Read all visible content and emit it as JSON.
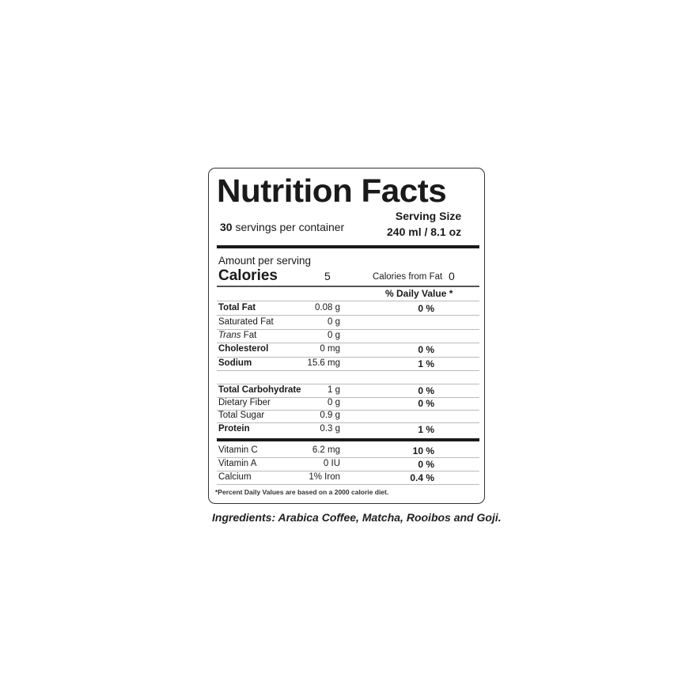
{
  "label": {
    "title": "Nutrition Facts",
    "servings_count": "30",
    "servings_text": "servings per container",
    "serving_size_label": "Serving Size",
    "serving_size_value": "240 ml / 8.1 oz",
    "amount_per_serving": "Amount per serving",
    "calories_label": "Calories",
    "calories_value": "5",
    "calories_from_fat_label": "Calories from Fat",
    "calories_from_fat_value": "0",
    "daily_value_header": "% Daily Value *",
    "nutrients": [
      {
        "name": "Total Fat",
        "amount": "0.08 g",
        "dv": "0 %",
        "style": "bold"
      },
      {
        "name": "Saturated Fat",
        "amount": "0 g",
        "dv": "",
        "style": "normal"
      },
      {
        "name": "Trans Fat",
        "amount": "0 g",
        "dv": "",
        "style": "trans"
      },
      {
        "name": "Cholesterol",
        "amount": "0 mg",
        "dv": "0 %",
        "style": "bold"
      },
      {
        "name": "Sodium",
        "amount": "15.6 mg",
        "dv": "1 %",
        "style": "bold"
      },
      {
        "name": "Total Carbohydrate",
        "amount": "1 g",
        "dv": "0 %",
        "style": "bold"
      },
      {
        "name": "Dietary Fiber",
        "amount": "0 g",
        "dv": "0 %",
        "style": "normal"
      },
      {
        "name": "Total Sugar",
        "amount": "0.9 g",
        "dv": "",
        "style": "normal"
      },
      {
        "name": "Protein",
        "amount": "0.3 g",
        "dv": "1 %",
        "style": "bold"
      }
    ],
    "vitamins": [
      {
        "name": "Vitamin C",
        "amount": "6.2 mg",
        "dv": "10 %"
      },
      {
        "name": "Vitamin A",
        "amount": "0 IU",
        "dv": "0 %"
      },
      {
        "name": "Calcium",
        "amount": "1% Iron",
        "dv": "0.4 %"
      }
    ],
    "footnote": "*Percent Daily Values are based on a 2000 calorie diet."
  },
  "ingredients": "Ingredients: Arabica Coffee, Matcha, Rooibos and Goji."
}
